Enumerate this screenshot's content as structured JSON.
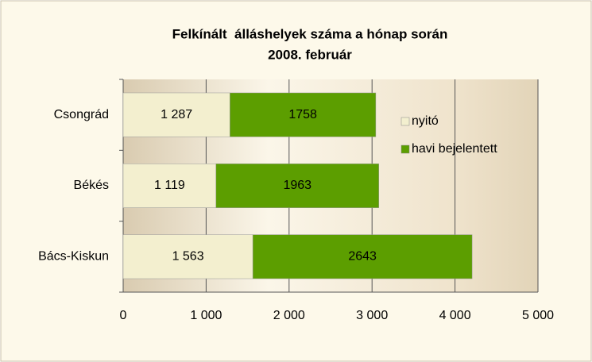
{
  "chart_data": {
    "type": "bar",
    "orientation": "horizontal",
    "stacked": true,
    "title": "Felkínált  álláshelyek száma a hónap során",
    "subtitle": "2008. február",
    "categories": [
      "Csongrád",
      "Békés",
      "Bács-Kiskun"
    ],
    "series": [
      {
        "name": "nyitó",
        "color": "#f3efcf",
        "values": [
          1287,
          1119,
          1563
        ],
        "value_labels": [
          "1 287",
          "1 119",
          "1 563"
        ]
      },
      {
        "name": "havi bejelentett",
        "color": "#5c9e00",
        "values": [
          1758,
          1963,
          2643
        ]
      }
    ],
    "xlim": [
      0,
      5000
    ],
    "xticks": [
      0,
      {
        "value": 1000,
        "label": "1 000"
      },
      {
        "value": 2000,
        "label": "2 000"
      },
      {
        "value": 3000,
        "label": "3 000"
      },
      {
        "value": 4000,
        "label": "4 000"
      },
      {
        "value": 5000,
        "label": "5 000"
      }
    ],
    "grid": true,
    "legend": "upper right"
  }
}
